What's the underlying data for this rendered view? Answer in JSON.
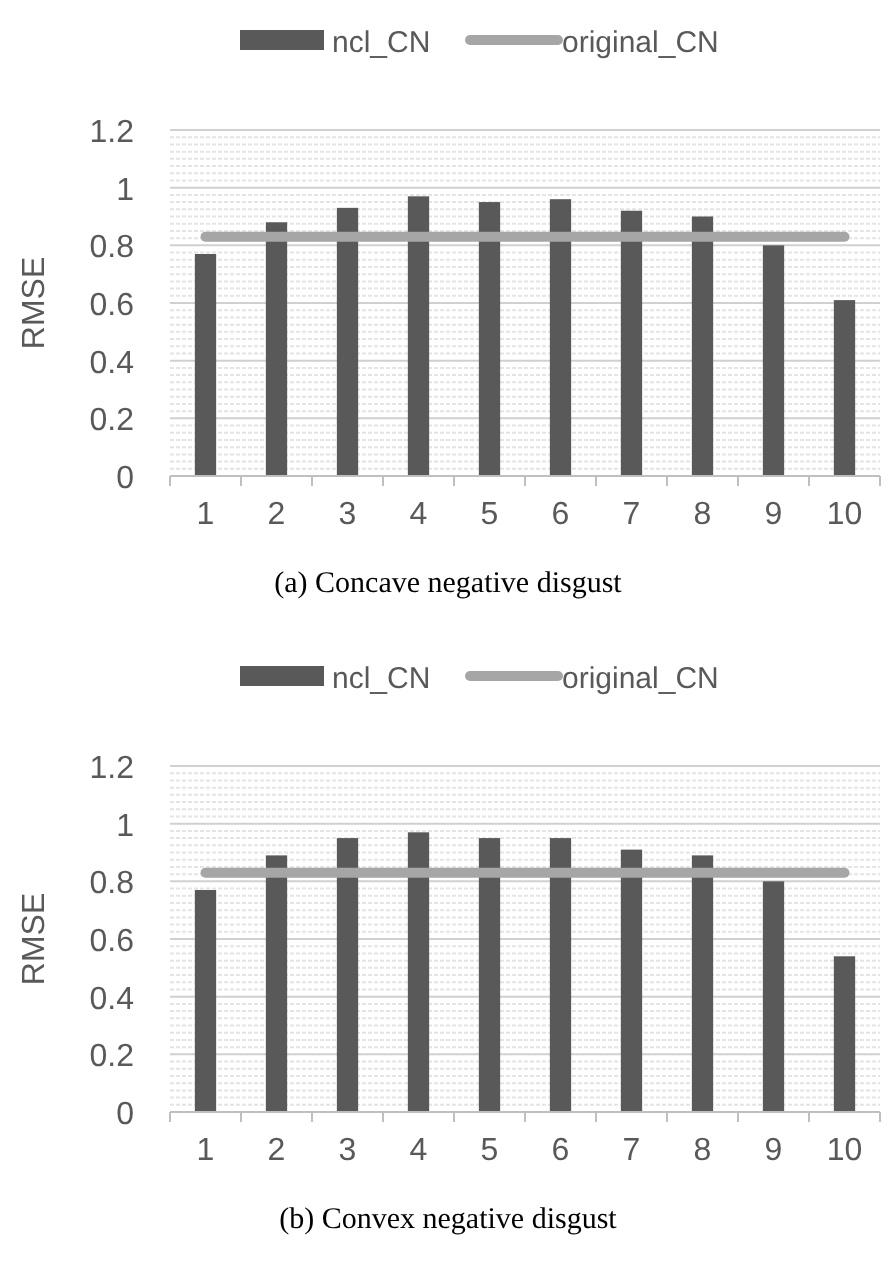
{
  "chart_data": [
    {
      "type": "bar",
      "title": "(a) Concave negative disgust",
      "ylabel": "RMSE",
      "categories": [
        "1",
        "2",
        "3",
        "4",
        "5",
        "6",
        "7",
        "8",
        "9",
        "10"
      ],
      "series": [
        {
          "name": "ncl_CN",
          "color": "#595959",
          "values": [
            0.77,
            0.88,
            0.93,
            0.97,
            0.95,
            0.96,
            0.92,
            0.9,
            0.8,
            0.61
          ]
        },
        {
          "name": "original_CN",
          "color": "#a6a6a6",
          "type": "line",
          "values": [
            0.83,
            0.83,
            0.83,
            0.83,
            0.83,
            0.83,
            0.83,
            0.83,
            0.83,
            0.83
          ]
        }
      ],
      "ylim": [
        0,
        1.2
      ],
      "yticks": [
        0,
        0.2,
        0.4,
        0.6,
        0.8,
        1,
        1.2
      ],
      "grid": "y",
      "legend": "top"
    },
    {
      "type": "bar",
      "title": "(b) Convex negative disgust",
      "ylabel": "RMSE",
      "categories": [
        "1",
        "2",
        "3",
        "4",
        "5",
        "6",
        "7",
        "8",
        "9",
        "10"
      ],
      "series": [
        {
          "name": "ncl_CN",
          "color": "#595959",
          "values": [
            0.77,
            0.89,
            0.95,
            0.97,
            0.95,
            0.95,
            0.91,
            0.89,
            0.8,
            0.54
          ]
        },
        {
          "name": "original_CN",
          "color": "#a6a6a6",
          "type": "line",
          "values": [
            0.83,
            0.83,
            0.83,
            0.83,
            0.83,
            0.83,
            0.83,
            0.83,
            0.83,
            0.83
          ]
        }
      ],
      "ylim": [
        0,
        1.2
      ],
      "yticks": [
        0,
        0.2,
        0.4,
        0.6,
        0.8,
        1,
        1.2
      ],
      "grid": "y",
      "legend": "top"
    }
  ]
}
